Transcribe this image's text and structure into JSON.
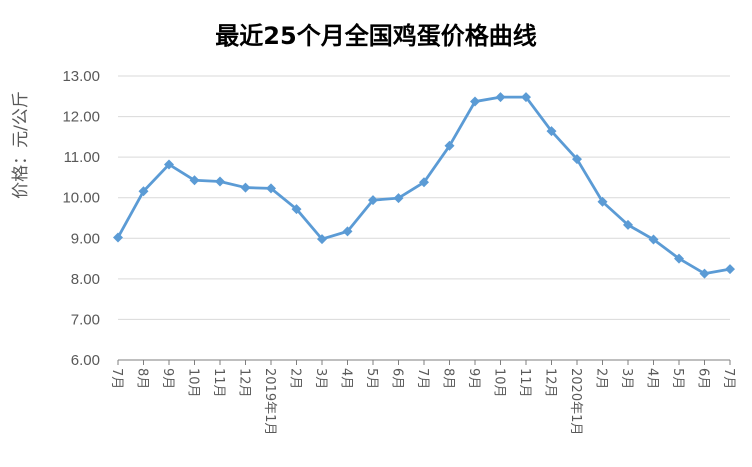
{
  "chart_data": {
    "type": "line",
    "title": "最近25个月全国鸡蛋价格曲线",
    "xlabel": "",
    "ylabel": "价格：元/公斤",
    "ylim": [
      6,
      13
    ],
    "y_ticks": [
      "6.00",
      "7.00",
      "8.00",
      "9.00",
      "10.00",
      "11.00",
      "12.00",
      "13.00"
    ],
    "grid": true,
    "legend": "none",
    "color": "#5b9bd5",
    "categories": [
      "7月",
      "8月",
      "9月",
      "10月",
      "11月",
      "12月",
      "2019年1月",
      "2月",
      "3月",
      "4月",
      "5月",
      "6月",
      "7月",
      "8月",
      "9月",
      "10月",
      "11月",
      "12月",
      "2020年1月",
      "2月",
      "3月",
      "4月",
      "5月",
      "6月",
      "7月"
    ],
    "values": [
      9.02,
      10.16,
      10.82,
      10.43,
      10.4,
      10.25,
      10.23,
      9.72,
      8.98,
      9.17,
      9.94,
      9.99,
      10.38,
      11.28,
      12.37,
      12.48,
      12.48,
      11.64,
      10.95,
      9.9,
      9.33,
      8.97,
      8.5,
      8.13,
      8.24
    ]
  }
}
